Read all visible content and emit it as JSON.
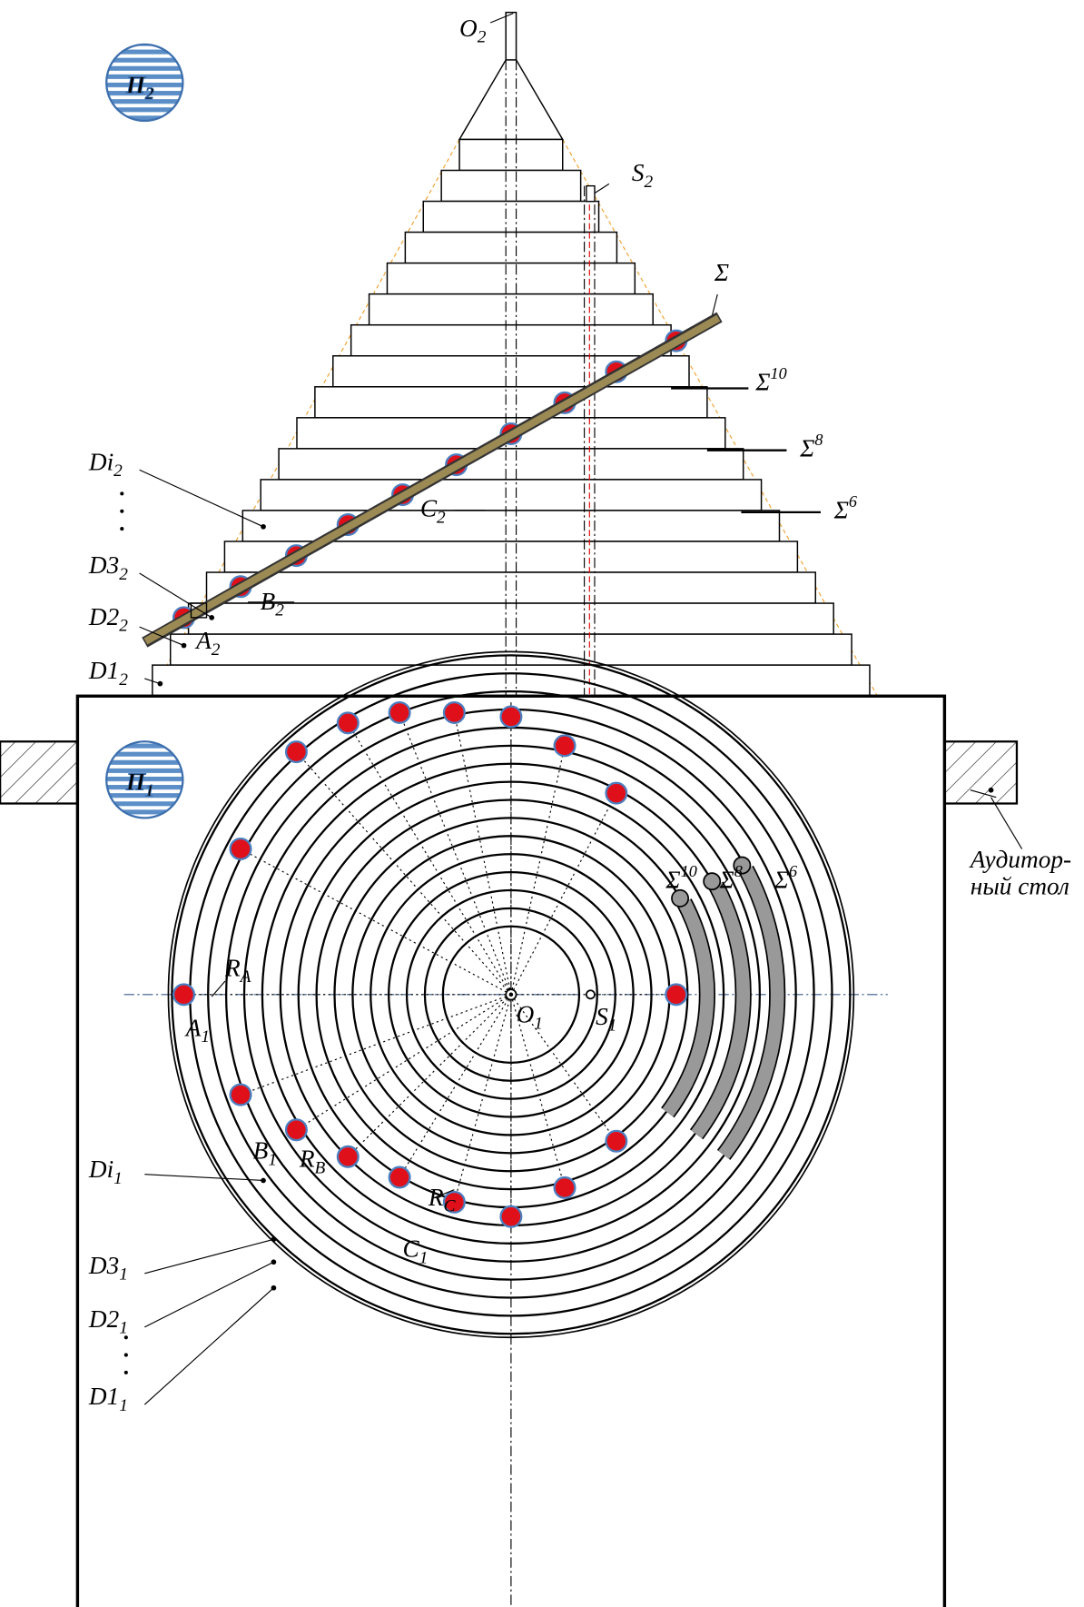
{
  "labels": {
    "O2": {
      "base": "O",
      "sub": "2"
    },
    "P2": {
      "base": "П",
      "sub": "2"
    },
    "S2": {
      "base": "S",
      "sub": "2"
    },
    "Sigma": {
      "base": "Σ"
    },
    "Sigma10_top": {
      "base": "Σ",
      "sup": "10"
    },
    "Sigma8_top": {
      "base": "Σ",
      "sup": "8"
    },
    "Sigma6_top": {
      "base": "Σ",
      "sup": "6"
    },
    "Di2": {
      "base": "Di",
      "sub": "2"
    },
    "D32": {
      "base": "D3",
      "sub": "2"
    },
    "D22": {
      "base": "D2",
      "sub": "2"
    },
    "D12": {
      "base": "D1",
      "sub": "2"
    },
    "A2": {
      "base": "A",
      "sub": "2"
    },
    "B2": {
      "base": "B",
      "sub": "2"
    },
    "C2": {
      "base": "C",
      "sub": "2"
    },
    "P1": {
      "base": "П",
      "sub": "1"
    },
    "table1": {
      "base": "Аудитор-"
    },
    "table2": {
      "base": "ный стол"
    },
    "Sigma10_bot": {
      "base": "Σ",
      "sup": "10"
    },
    "Sigma8_bot": {
      "base": "Σ",
      "sup": "8"
    },
    "Sigma6_bot": {
      "base": "Σ",
      "sup": "6"
    },
    "RA": {
      "base": "R",
      "sub": "A"
    },
    "A1": {
      "base": "A",
      "sub": "1"
    },
    "O1": {
      "base": "O",
      "sub": "1"
    },
    "S1": {
      "base": "S",
      "sub": "1"
    },
    "Di1": {
      "base": "Di",
      "sub": "1"
    },
    "RB": {
      "base": "R",
      "sub": "B"
    },
    "B1": {
      "base": "B",
      "sub": "1"
    },
    "RC": {
      "base": "R",
      "sub": "C"
    },
    "C1": {
      "base": "C",
      "sub": "1"
    },
    "D31": {
      "base": "D3",
      "sub": "1"
    },
    "D21": {
      "base": "D2",
      "sub": "1"
    },
    "D11": {
      "base": "D1",
      "sub": "1"
    }
  }
}
